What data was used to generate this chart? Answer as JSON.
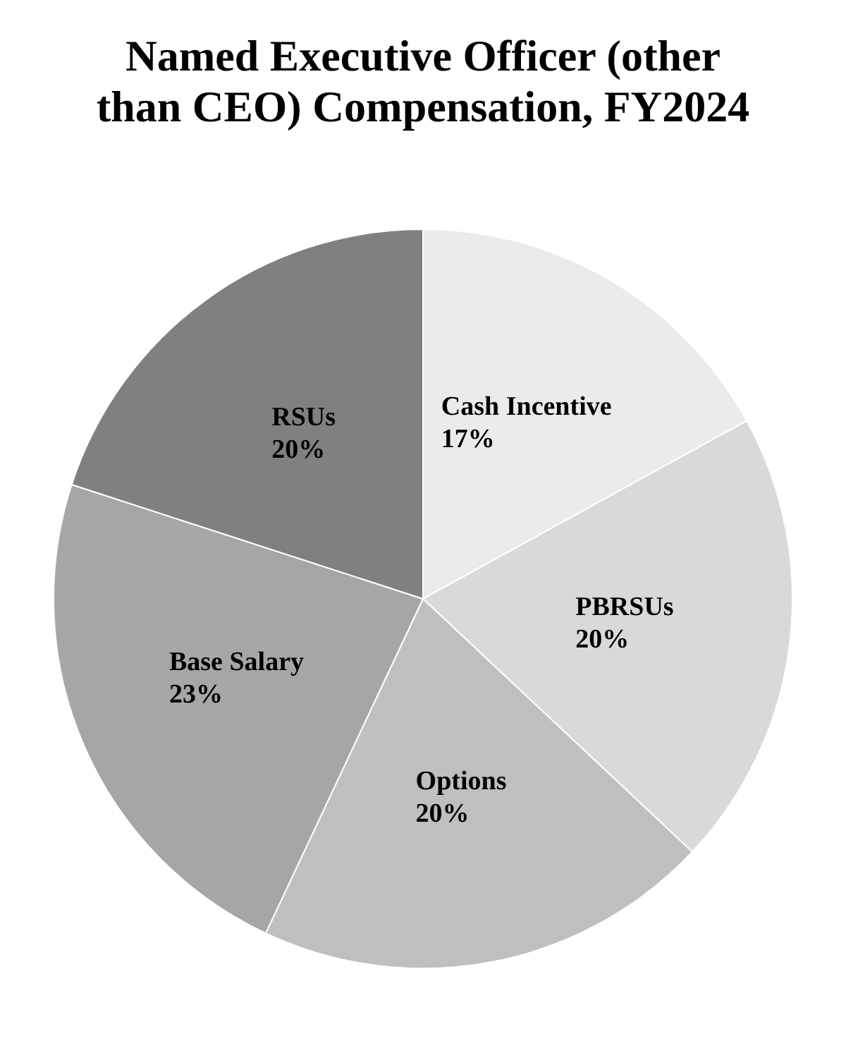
{
  "chart_data": {
    "type": "pie",
    "title": "Named Executive Officer (other than CEO) Compensation, FY2024",
    "categories": [
      "Cash Incentive",
      "PBRSUs",
      "Options",
      "Base Salary",
      "RSUs"
    ],
    "values": [
      17,
      20,
      20,
      23,
      20
    ],
    "value_labels": [
      "17%",
      "20%",
      "20%",
      "23%",
      "20%"
    ],
    "colors": [
      "#ebebeb",
      "#d9d9d9",
      "#bfbfbf",
      "#a6a6a6",
      "#808080"
    ],
    "legend": false
  }
}
